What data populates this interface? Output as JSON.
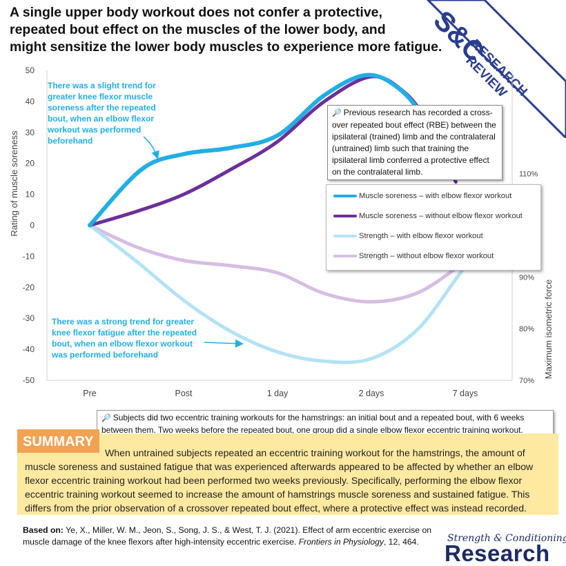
{
  "title": {
    "line1": "A single upper body workout does not confer a protective,",
    "line2": "repeated bout effect on the muscles of the lower body, and",
    "line3": "might sensitize the lower body muscles to experience more fatigue."
  },
  "banner": {
    "logo_text": "S&C",
    "word1": "RESEARCH",
    "word2": "REVIEW",
    "colors": {
      "fill": "#ffffff",
      "border": "#2a3d8f",
      "text": "#2a3d8f"
    }
  },
  "chart_data": {
    "type": "line",
    "categories": [
      "Pre",
      "Post",
      "1 day",
      "2 days",
      "7 days"
    ],
    "left_axis": {
      "label": "Rating of muscle soreness",
      "min": -50,
      "max": 50,
      "ticks": [
        50,
        40,
        30,
        20,
        10,
        0,
        -10,
        -20,
        -30,
        -40,
        -50
      ]
    },
    "right_axis": {
      "label": "Maximum isometric force",
      "tick_labels": [
        "110%",
        "90%",
        "80%",
        "70%"
      ],
      "tick_values": [
        110,
        90,
        80,
        70
      ],
      "min": 70,
      "max": 130
    },
    "series": [
      {
        "name": "Muscle soreness – with elbow flexor workout",
        "axis": "left",
        "color": "#21aee5",
        "width": 6,
        "points": [
          [
            0,
            0
          ],
          [
            0.55,
            18
          ],
          [
            1,
            23
          ],
          [
            1.5,
            25
          ],
          [
            2,
            29
          ],
          [
            2.5,
            42
          ],
          [
            2.95,
            48.5
          ],
          [
            3.3,
            44
          ],
          [
            3.6,
            33
          ],
          [
            3.85,
            18
          ]
        ]
      },
      {
        "name": "Muscle soreness – without elbow flexor workout",
        "axis": "left",
        "color": "#6d2f9a",
        "width": 5,
        "points": [
          [
            0,
            0
          ],
          [
            0.5,
            4.5
          ],
          [
            1,
            10
          ],
          [
            1.5,
            18
          ],
          [
            2,
            27
          ],
          [
            2.5,
            40
          ],
          [
            3,
            48
          ],
          [
            3.35,
            43
          ],
          [
            3.6,
            33
          ],
          [
            3.9,
            14
          ]
        ]
      },
      {
        "name": "Strength – with elbow flexor workout",
        "axis": "right",
        "color": "#b3e2f5",
        "width": 5,
        "points": [
          [
            0,
            100
          ],
          [
            0.5,
            93
          ],
          [
            1,
            85.5
          ],
          [
            1.5,
            79.5
          ],
          [
            2,
            75.5
          ],
          [
            2.5,
            73.7
          ],
          [
            3,
            74.2
          ],
          [
            3.5,
            80
          ],
          [
            4,
            92
          ],
          [
            4.3,
            97
          ]
        ]
      },
      {
        "name": "Strength – without elbow flexor workout",
        "axis": "right",
        "color": "#d7bde3",
        "width": 5,
        "points": [
          [
            0,
            100
          ],
          [
            0.5,
            95.8
          ],
          [
            1,
            93.2
          ],
          [
            1.5,
            92.2
          ],
          [
            2,
            90.8
          ],
          [
            2.5,
            86.8
          ],
          [
            3,
            85.2
          ],
          [
            3.5,
            87
          ],
          [
            4,
            93
          ],
          [
            4.3,
            97
          ]
        ]
      }
    ]
  },
  "legend_title_hidden": "",
  "annotations": {
    "soreness": "There was a slight trend for greater knee flexor muscle soreness after the repeated bout, when an elbow flexor workout was performed beforehand",
    "fatigue": "There was a strong trend for greater knee flexor fatigue after the repeated bout, when an elbow flexor workout was performed beforehand"
  },
  "notes": {
    "rbe": "Previous research has recorded a cross-over repeated bout effect (RBE) between the ipsilateral (trained) limb and the contralateral (untrained) limb such that training the ipsilateral limb conferred a protective effect on the contralateral limb.",
    "subjects": "Subjects did two eccentric training workouts for the hamstrings: an initial bout and a repeated bout, with 6 weeks between them. Two weeks before the repeated bout, one group did a single elbow flexor eccentric training workout."
  },
  "summary": {
    "label": "SUMMARY",
    "text": "When untrained subjects repeated an eccentric training workout for the hamstrings, the amount of muscle soreness and sustained fatigue that was experienced afterwards appeared to be affected by whether an elbow flexor eccentric training workout had been performed two weeks previously. Specifically, performing the elbow flexor eccentric training workout seemed to increase the amount of hamstrings muscle soreness and sustained fatigue. This differs from the prior observation of a crossover repeated bout effect, where a protective effect was instead recorded.",
    "colors": {
      "box": "#fee9a1",
      "tag": "#f3a253"
    }
  },
  "reference": {
    "label": "Based on:",
    "text": "Ye, X., Miller, W. M., Jeon, S., Song, J. S., & West, T. J. (2021). Effect of arm eccentric exercise on muscle damage of the knee flexors after high-intensity eccentric exercise.",
    "journal": "Frontiers in Physiology",
    "volume": ", 12, 464."
  },
  "brand": {
    "line1": "Strength & Conditioning",
    "line2": "Research",
    "color": "#1c2a66"
  }
}
